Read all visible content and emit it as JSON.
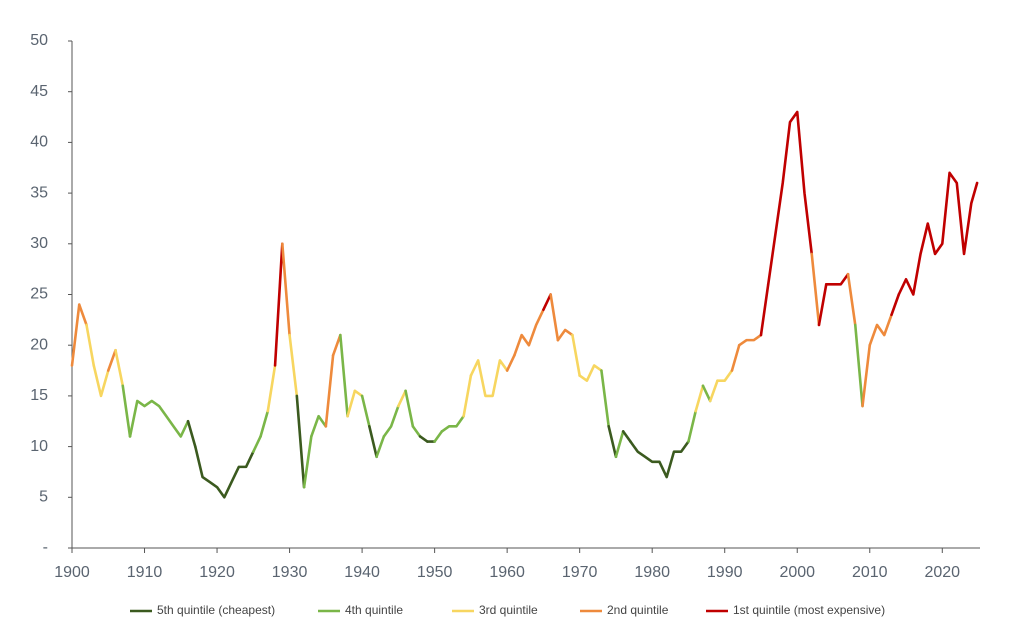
{
  "chart_data": {
    "type": "line",
    "x": [
      1900,
      1901,
      1902,
      1903,
      1904,
      1905,
      1906,
      1907,
      1908,
      1909,
      1910,
      1911,
      1912,
      1913,
      1914,
      1915,
      1916,
      1917,
      1918,
      1919,
      1920,
      1921,
      1922,
      1923,
      1924,
      1925,
      1926,
      1927,
      1928,
      1929,
      1930,
      1931,
      1932,
      1933,
      1934,
      1935,
      1936,
      1937,
      1938,
      1939,
      1940,
      1941,
      1942,
      1943,
      1944,
      1945,
      1946,
      1947,
      1948,
      1949,
      1950,
      1951,
      1952,
      1953,
      1954,
      1955,
      1956,
      1957,
      1958,
      1959,
      1960,
      1961,
      1962,
      1963,
      1964,
      1965,
      1966,
      1967,
      1968,
      1969,
      1970,
      1971,
      1972,
      1973,
      1974,
      1975,
      1976,
      1977,
      1978,
      1979,
      1980,
      1981,
      1982,
      1983,
      1984,
      1985,
      1986,
      1987,
      1988,
      1989,
      1990,
      1991,
      1992,
      1993,
      1994,
      1995,
      1996,
      1997,
      1998,
      1999,
      2000,
      2001,
      2002,
      2003,
      2004,
      2005,
      2006,
      2007,
      2008,
      2009,
      2010,
      2011,
      2012,
      2013,
      2014,
      2015,
      2016,
      2017,
      2018,
      2019,
      2020,
      2021,
      2022,
      2023,
      2024,
      2024.8
    ],
    "series": [
      {
        "name": "5th quintile (cheapest)",
        "color": "#3b5a1f",
        "values": [
          null,
          null,
          null,
          null,
          null,
          null,
          null,
          null,
          null,
          null,
          null,
          null,
          null,
          null,
          null,
          null,
          null,
          10,
          7,
          6.5,
          6,
          5,
          6.5,
          8,
          8,
          9.5,
          null,
          null,
          null,
          null,
          null,
          null,
          6,
          null,
          null,
          null,
          null,
          null,
          null,
          null,
          null,
          null,
          9,
          null,
          null,
          null,
          null,
          null,
          null,
          10.5,
          10.5,
          null,
          null,
          null,
          null,
          null,
          null,
          null,
          null,
          null,
          null,
          null,
          null,
          null,
          null,
          null,
          null,
          null,
          null,
          null,
          null,
          null,
          null,
          null,
          null,
          9,
          null,
          10.5,
          9.5,
          9,
          8.5,
          8.5,
          7,
          9.5,
          9.5,
          10.5,
          null,
          null,
          null,
          null,
          null,
          null,
          null,
          null,
          null,
          null,
          null,
          null,
          null,
          null,
          null,
          null,
          null,
          null,
          null,
          null,
          null,
          null,
          null,
          null,
          null,
          null,
          null,
          null,
          null,
          null,
          null,
          null,
          null,
          null,
          null,
          null,
          null,
          null,
          null,
          null
        ]
      },
      {
        "name": "4th quintile",
        "color": "#7ab648",
        "values": [
          null,
          null,
          null,
          null,
          null,
          null,
          null,
          null,
          11,
          14.5,
          14,
          14.5,
          14,
          13,
          12,
          11,
          12.5,
          null,
          null,
          null,
          null,
          null,
          null,
          null,
          null,
          null,
          11,
          13.5,
          null,
          null,
          null,
          null,
          null,
          11,
          13,
          12,
          null,
          null,
          13,
          null,
          null,
          12,
          null,
          11,
          12,
          14,
          null,
          12,
          11,
          null,
          null,
          11.5,
          12,
          12,
          13,
          null,
          null,
          null,
          null,
          null,
          null,
          null,
          null,
          null,
          null,
          null,
          null,
          null,
          null,
          null,
          null,
          null,
          null,
          null,
          12,
          null,
          11.5,
          null,
          null,
          null,
          null,
          null,
          null,
          null,
          null,
          null,
          13.5,
          null,
          14.5,
          null,
          null,
          null,
          null,
          null,
          null,
          null,
          null,
          null,
          null,
          null,
          null,
          null,
          null,
          null,
          null,
          null,
          null,
          null,
          null,
          14,
          null,
          null,
          null,
          null,
          null,
          null,
          null,
          null,
          null,
          null,
          null,
          null,
          null,
          null,
          null,
          null
        ]
      },
      {
        "name": "3rd quintile",
        "color": "#f7d660",
        "values": [
          18,
          null,
          null,
          18,
          15,
          17.5,
          null,
          16,
          null,
          null,
          null,
          null,
          null,
          null,
          null,
          null,
          null,
          null,
          null,
          null,
          null,
          null,
          null,
          null,
          null,
          null,
          null,
          null,
          18,
          null,
          null,
          15,
          null,
          null,
          null,
          null,
          null,
          null,
          null,
          15.5,
          15,
          null,
          null,
          null,
          null,
          null,
          15.5,
          null,
          null,
          null,
          null,
          null,
          null,
          null,
          null,
          17,
          18.5,
          15,
          15,
          18.5,
          17.5,
          null,
          null,
          null,
          null,
          null,
          null,
          null,
          null,
          null,
          17,
          16.5,
          18,
          17.5,
          null,
          null,
          null,
          null,
          null,
          null,
          null,
          null,
          null,
          null,
          null,
          null,
          null,
          16,
          null,
          16.5,
          16.5,
          17.5,
          null,
          null,
          null,
          null,
          null,
          null,
          null,
          null,
          null,
          null,
          null,
          null,
          null,
          null,
          null,
          null,
          null,
          null,
          null,
          null,
          null,
          null,
          null,
          null,
          null,
          null,
          null,
          null,
          null,
          null,
          null,
          null,
          null,
          null
        ]
      },
      {
        "name": "2nd quintile",
        "color": "#ee8a3c",
        "values": [
          null,
          24,
          22,
          null,
          null,
          null,
          19.5,
          null,
          null,
          null,
          null,
          null,
          null,
          null,
          null,
          null,
          null,
          null,
          null,
          null,
          null,
          null,
          null,
          null,
          null,
          null,
          null,
          null,
          null,
          null,
          21,
          null,
          null,
          null,
          null,
          null,
          19,
          21,
          null,
          null,
          null,
          null,
          null,
          null,
          null,
          null,
          null,
          null,
          null,
          null,
          null,
          null,
          null,
          null,
          null,
          null,
          null,
          null,
          null,
          null,
          null,
          19,
          21,
          20,
          22,
          23.5,
          null,
          20.5,
          21.5,
          21,
          null,
          null,
          null,
          null,
          null,
          null,
          null,
          null,
          null,
          null,
          null,
          null,
          null,
          null,
          null,
          null,
          null,
          null,
          null,
          null,
          null,
          null,
          20,
          20.5,
          20.5,
          21,
          null,
          null,
          null,
          null,
          null,
          null,
          null,
          22,
          null,
          null,
          null,
          null,
          22,
          null,
          20,
          22,
          21,
          23,
          null,
          null,
          null,
          null,
          null,
          null,
          null,
          null,
          null,
          null,
          null,
          null
        ]
      },
      {
        "name": "1st quintile (most expensive)",
        "color": "#c00000",
        "values": [
          null,
          null,
          null,
          null,
          null,
          null,
          null,
          null,
          null,
          null,
          null,
          null,
          null,
          null,
          null,
          null,
          null,
          null,
          null,
          null,
          null,
          null,
          null,
          null,
          null,
          null,
          null,
          null,
          null,
          30,
          null,
          null,
          null,
          null,
          null,
          null,
          null,
          null,
          null,
          null,
          null,
          null,
          null,
          null,
          null,
          null,
          null,
          null,
          null,
          null,
          null,
          null,
          null,
          null,
          null,
          null,
          null,
          null,
          null,
          null,
          null,
          null,
          null,
          null,
          null,
          null,
          25,
          null,
          null,
          null,
          null,
          null,
          null,
          null,
          null,
          null,
          null,
          null,
          null,
          null,
          null,
          null,
          null,
          null,
          null,
          null,
          null,
          null,
          null,
          null,
          null,
          null,
          null,
          null,
          null,
          null,
          26,
          31,
          36,
          42,
          43,
          35,
          29,
          null,
          26,
          26,
          26,
          27,
          null,
          null,
          null,
          null,
          null,
          null,
          25,
          26.5,
          25,
          29,
          32,
          29,
          30,
          37,
          36,
          29,
          34,
          36
        ]
      }
    ],
    "xlim": [
      1900,
      2025.2
    ],
    "xticks": [
      1900,
      1910,
      1920,
      1930,
      1940,
      1950,
      1960,
      1970,
      1980,
      1990,
      2000,
      2010,
      2020
    ],
    "ylim": [
      0,
      50
    ],
    "yticks": [
      {
        "value": 0,
        "label": "-"
      },
      5,
      10,
      15,
      20,
      25,
      30,
      35,
      40,
      45,
      50
    ],
    "grid": false,
    "legend": "bottom"
  }
}
